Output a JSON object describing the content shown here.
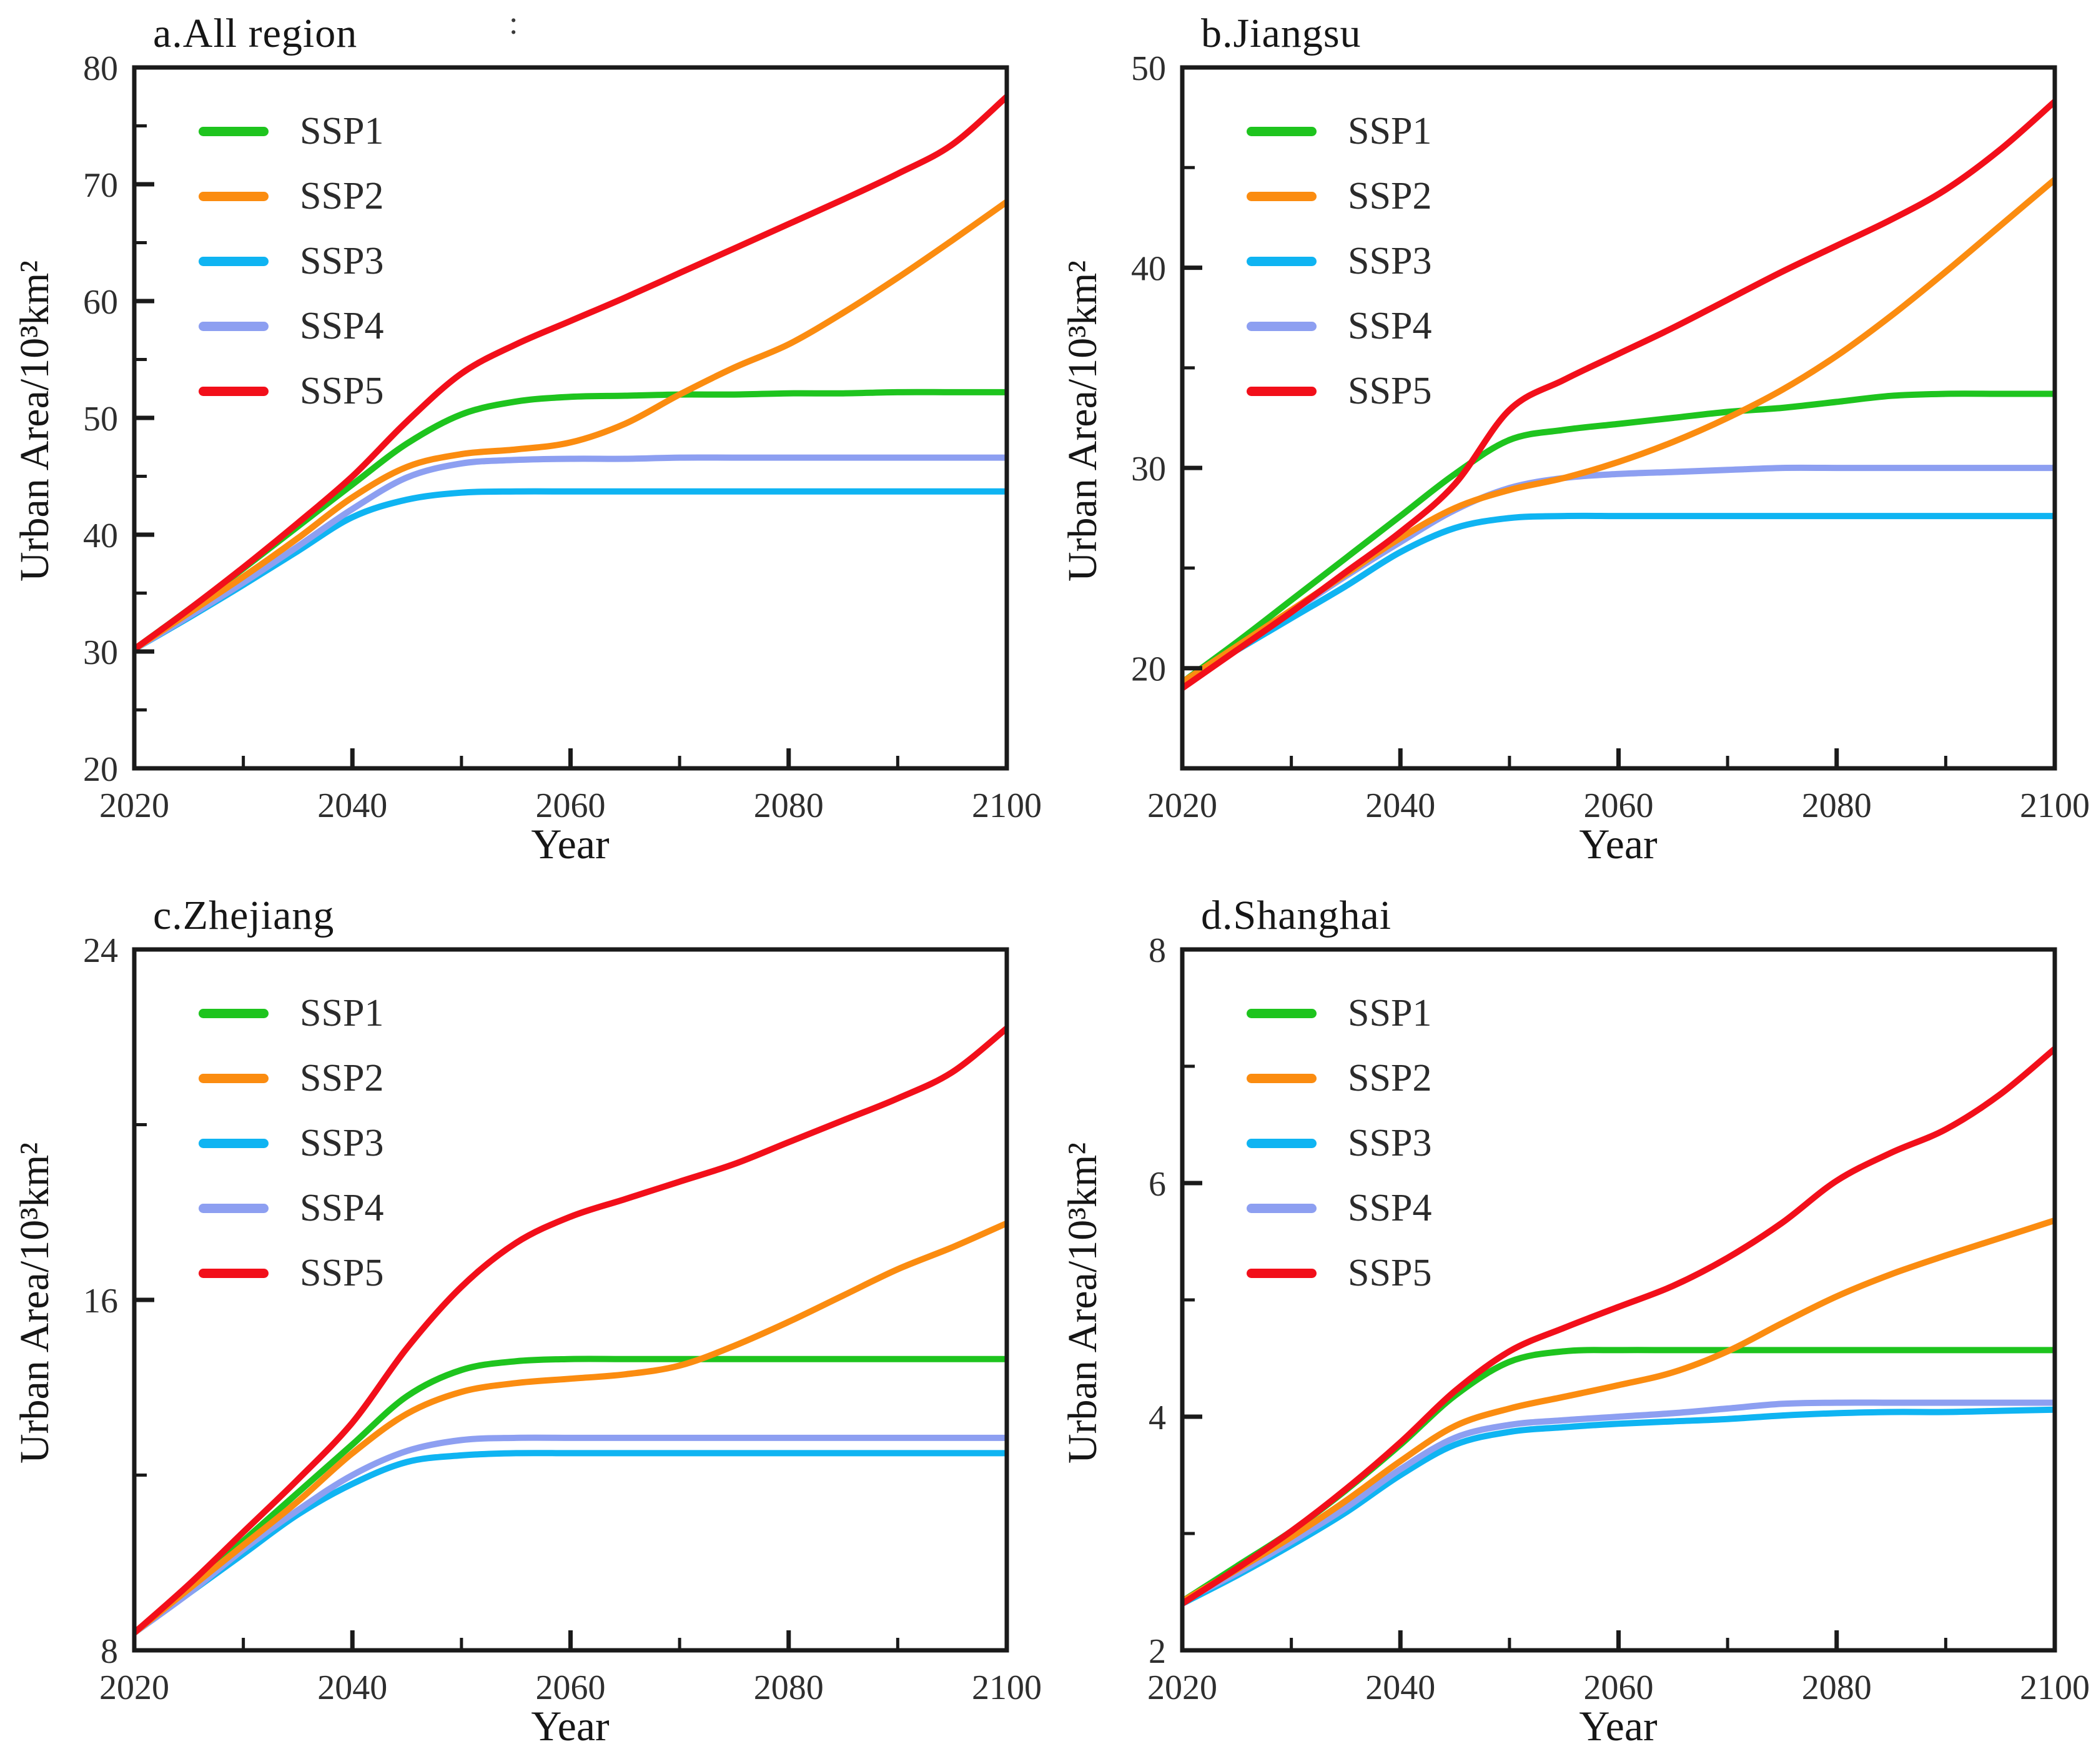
{
  "figure": {
    "background": "#ffffff",
    "axis_color": "#1a1a1a",
    "text_color": "#161616",
    "tick_label_color": "#2e2e2e"
  },
  "colors": {
    "ssp1": "#1ec41e",
    "ssp2": "#fb8c10",
    "ssp3": "#0fb4f2",
    "ssp4": "#8d9ff1",
    "ssp5": "#f20f1a"
  },
  "legend": {
    "items": [
      {
        "label": "SSP1",
        "color": "ssp1"
      },
      {
        "label": "SSP2",
        "color": "ssp2"
      },
      {
        "label": "SSP3",
        "color": "ssp3"
      },
      {
        "label": "SSP4",
        "color": "ssp4"
      },
      {
        "label": "SSP5",
        "color": "ssp5"
      }
    ],
    "position": "upper-left-inside"
  },
  "chart_data": [
    {
      "id": "a",
      "type": "line",
      "title": "a.All region",
      "title_artifact": ":",
      "xlabel": "Year",
      "ylabel": "Urban Area/10³km²",
      "x": [
        2020,
        2025,
        2030,
        2035,
        2040,
        2045,
        2050,
        2055,
        2060,
        2065,
        2070,
        2075,
        2080,
        2085,
        2090,
        2095,
        2100
      ],
      "xlim": [
        2020,
        2100
      ],
      "xticks_labeled": [
        2020,
        2040,
        2060,
        2080,
        2100
      ],
      "xminor_step": 10,
      "ylim": [
        20,
        80
      ],
      "yticks_labeled": [
        20,
        30,
        40,
        50,
        60,
        70,
        80
      ],
      "yminor_step": 5,
      "grid": false,
      "draw_order": [
        "SSP1",
        "SSP3",
        "SSP4",
        "SSP2",
        "SSP5"
      ],
      "series": [
        {
          "name": "SSP1",
          "color": "ssp1",
          "values": [
            30.2,
            33.6,
            37.1,
            40.7,
            44.3,
            47.8,
            50.3,
            51.4,
            51.8,
            51.9,
            52.0,
            52.0,
            52.1,
            52.1,
            52.2,
            52.2,
            52.2
          ]
        },
        {
          "name": "SSP2",
          "color": "ssp2",
          "values": [
            30.2,
            33.3,
            36.4,
            39.7,
            43.2,
            45.8,
            46.9,
            47.3,
            47.9,
            49.5,
            52.0,
            54.3,
            56.3,
            59.0,
            62.0,
            65.2,
            68.5
          ]
        },
        {
          "name": "SSP3",
          "color": "ssp3",
          "values": [
            30.2,
            32.9,
            35.7,
            38.6,
            41.5,
            43.0,
            43.6,
            43.7,
            43.7,
            43.7,
            43.7,
            43.7,
            43.7,
            43.7,
            43.7,
            43.7,
            43.7
          ]
        },
        {
          "name": "SSP4",
          "color": "ssp4",
          "values": [
            30.2,
            33.0,
            35.9,
            39.0,
            42.2,
            44.9,
            46.1,
            46.4,
            46.5,
            46.5,
            46.6,
            46.6,
            46.6,
            46.6,
            46.6,
            46.6,
            46.6
          ]
        },
        {
          "name": "SSP5",
          "color": "ssp5",
          "values": [
            30.2,
            33.6,
            37.2,
            41.0,
            45.0,
            49.7,
            53.8,
            56.3,
            58.3,
            60.3,
            62.4,
            64.5,
            66.6,
            68.7,
            70.9,
            73.4,
            77.5
          ]
        }
      ]
    },
    {
      "id": "b",
      "type": "line",
      "title": "b.Jiangsu",
      "title_artifact": "",
      "xlabel": "Year",
      "ylabel": "Urban Area/10³km²",
      "x": [
        2020,
        2025,
        2030,
        2035,
        2040,
        2045,
        2050,
        2055,
        2060,
        2065,
        2070,
        2075,
        2080,
        2085,
        2090,
        2095,
        2100
      ],
      "xlim": [
        2020,
        2100
      ],
      "xticks_labeled": [
        2020,
        2040,
        2060,
        2080,
        2100
      ],
      "xminor_step": 10,
      "ylim": [
        15,
        50
      ],
      "yticks_labeled": [
        20,
        30,
        40,
        50
      ],
      "yminor_step": 5,
      "grid": false,
      "draw_order": [
        "SSP1",
        "SSP3",
        "SSP4",
        "SSP2",
        "SSP5"
      ],
      "series": [
        {
          "name": "SSP1",
          "color": "ssp1",
          "values": [
            19.3,
            21.3,
            23.4,
            25.5,
            27.6,
            29.7,
            31.4,
            31.9,
            32.2,
            32.5,
            32.8,
            33.0,
            33.3,
            33.6,
            33.7,
            33.7,
            33.7
          ]
        },
        {
          "name": "SSP2",
          "color": "ssp2",
          "values": [
            19.3,
            21.1,
            22.9,
            24.7,
            26.5,
            28.0,
            28.9,
            29.5,
            30.3,
            31.3,
            32.5,
            33.9,
            35.6,
            37.6,
            39.8,
            42.1,
            44.4
          ]
        },
        {
          "name": "SSP3",
          "color": "ssp3",
          "values": [
            19.3,
            20.9,
            22.5,
            24.1,
            25.8,
            27.0,
            27.5,
            27.6,
            27.6,
            27.6,
            27.6,
            27.6,
            27.6,
            27.6,
            27.6,
            27.6,
            27.6
          ]
        },
        {
          "name": "SSP4",
          "color": "ssp4",
          "values": [
            19.3,
            21.0,
            22.8,
            24.6,
            26.3,
            27.9,
            29.0,
            29.5,
            29.7,
            29.8,
            29.9,
            30.0,
            30.0,
            30.0,
            30.0,
            30.0,
            30.0
          ]
        },
        {
          "name": "SSP5",
          "color": "ssp5",
          "values": [
            19.0,
            20.9,
            22.8,
            24.8,
            26.8,
            29.2,
            32.9,
            34.4,
            35.7,
            37.0,
            38.4,
            39.8,
            41.1,
            42.4,
            43.9,
            45.9,
            48.3
          ]
        }
      ]
    },
    {
      "id": "c",
      "type": "line",
      "title": "c.Zhejiang",
      "title_artifact": "",
      "xlabel": "Year",
      "ylabel": "Urban Area/10³km²",
      "x": [
        2020,
        2025,
        2030,
        2035,
        2040,
        2045,
        2050,
        2055,
        2060,
        2065,
        2070,
        2075,
        2080,
        2085,
        2090,
        2095,
        2100
      ],
      "xlim": [
        2020,
        2100
      ],
      "xticks_labeled": [
        2020,
        2040,
        2060,
        2080,
        2100
      ],
      "xminor_step": 10,
      "ylim": [
        8,
        24
      ],
      "yticks_labeled": [
        8,
        16,
        24
      ],
      "yminor_step": 4,
      "grid": false,
      "draw_order": [
        "SSP1",
        "SSP3",
        "SSP4",
        "SSP2",
        "SSP5"
      ],
      "series": [
        {
          "name": "SSP1",
          "color": "ssp1",
          "values": [
            8.4,
            9.4,
            10.5,
            11.6,
            12.7,
            13.8,
            14.4,
            14.6,
            14.65,
            14.65,
            14.65,
            14.65,
            14.65,
            14.65,
            14.65,
            14.65,
            14.65
          ]
        },
        {
          "name": "SSP2",
          "color": "ssp2",
          "values": [
            8.4,
            9.4,
            10.4,
            11.4,
            12.5,
            13.4,
            13.9,
            14.1,
            14.2,
            14.3,
            14.5,
            14.95,
            15.5,
            16.1,
            16.7,
            17.2,
            17.75
          ]
        },
        {
          "name": "SSP3",
          "color": "ssp3",
          "values": [
            8.4,
            9.3,
            10.2,
            11.1,
            11.8,
            12.3,
            12.45,
            12.5,
            12.5,
            12.5,
            12.5,
            12.5,
            12.5,
            12.5,
            12.5,
            12.5,
            12.5
          ]
        },
        {
          "name": "SSP4",
          "color": "ssp4",
          "values": [
            8.4,
            9.3,
            10.3,
            11.2,
            12.0,
            12.55,
            12.8,
            12.85,
            12.85,
            12.85,
            12.85,
            12.85,
            12.85,
            12.85,
            12.85,
            12.85,
            12.85
          ]
        },
        {
          "name": "SSP5",
          "color": "ssp5",
          "values": [
            8.4,
            9.5,
            10.7,
            11.9,
            13.2,
            14.9,
            16.3,
            17.3,
            17.9,
            18.3,
            18.7,
            19.1,
            19.6,
            20.1,
            20.6,
            21.2,
            22.2
          ]
        }
      ]
    },
    {
      "id": "d",
      "type": "line",
      "title": "d.Shanghai",
      "title_artifact": "",
      "xlabel": "Year",
      "ylabel": "Urban Area/10³km²",
      "x": [
        2020,
        2025,
        2030,
        2035,
        2040,
        2045,
        2050,
        2055,
        2060,
        2065,
        2070,
        2075,
        2080,
        2085,
        2090,
        2095,
        2100
      ],
      "xlim": [
        2020,
        2100
      ],
      "xticks_labeled": [
        2020,
        2040,
        2060,
        2080,
        2100
      ],
      "xminor_step": 10,
      "ylim": [
        2,
        8
      ],
      "yticks_labeled": [
        2,
        4,
        6,
        8
      ],
      "yminor_step": 1,
      "grid": false,
      "draw_order": [
        "SSP1",
        "SSP3",
        "SSP4",
        "SSP2",
        "SSP5"
      ],
      "series": [
        {
          "name": "SSP1",
          "color": "ssp1",
          "values": [
            2.42,
            2.72,
            3.02,
            3.37,
            3.76,
            4.18,
            4.47,
            4.56,
            4.57,
            4.57,
            4.57,
            4.57,
            4.57,
            4.57,
            4.57,
            4.57,
            4.57
          ]
        },
        {
          "name": "SSP2",
          "color": "ssp2",
          "values": [
            2.42,
            2.69,
            2.97,
            3.28,
            3.62,
            3.92,
            4.07,
            4.17,
            4.27,
            4.38,
            4.56,
            4.8,
            5.03,
            5.22,
            5.38,
            5.53,
            5.68
          ]
        },
        {
          "name": "SSP3",
          "color": "ssp3",
          "values": [
            2.4,
            2.64,
            2.9,
            3.18,
            3.5,
            3.76,
            3.87,
            3.91,
            3.94,
            3.96,
            3.98,
            4.01,
            4.03,
            4.04,
            4.04,
            4.05,
            4.06
          ]
        },
        {
          "name": "SSP4",
          "color": "ssp4",
          "values": [
            2.42,
            2.66,
            2.93,
            3.22,
            3.55,
            3.82,
            3.93,
            3.97,
            4.0,
            4.03,
            4.07,
            4.11,
            4.12,
            4.12,
            4.12,
            4.12,
            4.12
          ]
        },
        {
          "name": "SSP5",
          "color": "ssp5",
          "values": [
            2.4,
            2.7,
            3.02,
            3.38,
            3.78,
            4.22,
            4.56,
            4.76,
            4.94,
            5.12,
            5.36,
            5.66,
            6.02,
            6.26,
            6.46,
            6.76,
            7.15
          ]
        }
      ]
    }
  ]
}
